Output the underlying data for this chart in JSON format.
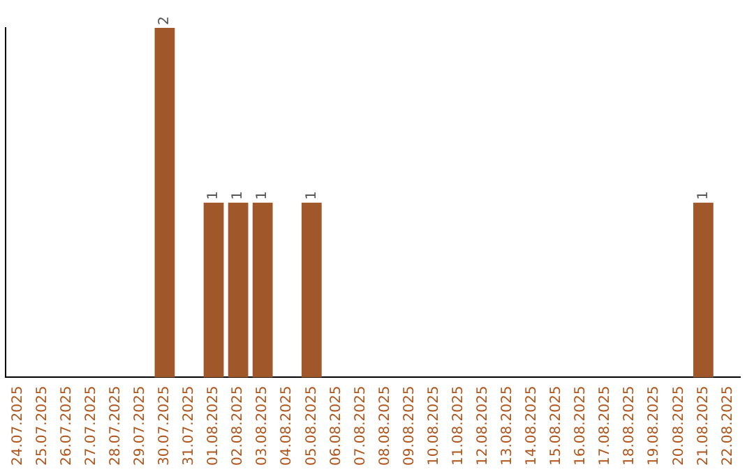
{
  "chart_data": {
    "type": "bar",
    "categories": [
      "24.07.2025",
      "25.07.2025",
      "26.07.2025",
      "27.07.2025",
      "28.07.2025",
      "29.07.2025",
      "30.07.2025",
      "31.07.2025",
      "01.08.2025",
      "02.08.2025",
      "03.08.2025",
      "04.08.2025",
      "05.08.2025",
      "06.08.2025",
      "07.08.2025",
      "08.08.2025",
      "09.08.2025",
      "10.08.2025",
      "11.08.2025",
      "12.08.2025",
      "13.08.2025",
      "14.08.2025",
      "15.08.2025",
      "16.08.2025",
      "17.08.2025",
      "18.08.2025",
      "19.08.2025",
      "20.08.2025",
      "21.08.2025",
      "22.08.2025"
    ],
    "values": [
      0,
      0,
      0,
      0,
      0,
      0,
      2,
      0,
      1,
      1,
      1,
      0,
      1,
      0,
      0,
      0,
      0,
      0,
      0,
      0,
      0,
      0,
      0,
      0,
      0,
      0,
      0,
      0,
      1,
      0
    ],
    "value_labels": [
      null,
      null,
      null,
      null,
      null,
      null,
      "2",
      null,
      "1",
      "1",
      "1",
      null,
      "1",
      null,
      null,
      null,
      null,
      null,
      null,
      null,
      null,
      null,
      null,
      null,
      null,
      null,
      null,
      null,
      "1",
      null
    ],
    "color": "#a0572a",
    "ylim": [
      0,
      2
    ],
    "grid": false,
    "legend": false,
    "tick_labels": "x"
  }
}
